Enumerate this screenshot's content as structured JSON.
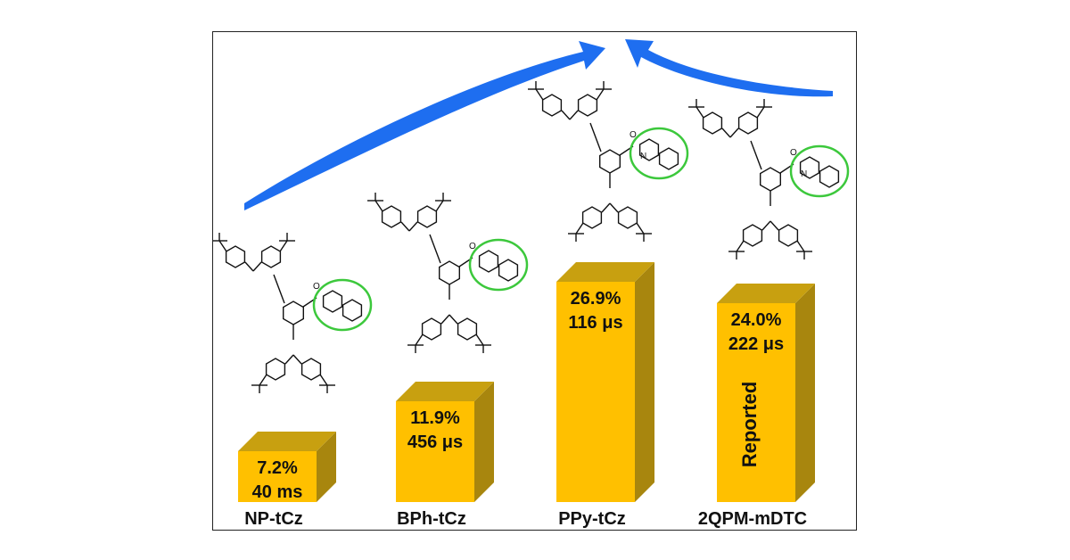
{
  "chart_data": {
    "type": "bar",
    "categories": [
      "NP-tCz",
      "BPh-tCz",
      "PPy-tCz",
      "2QPM-mDTC"
    ],
    "series": [
      {
        "values": [
          7.2,
          11.9,
          26.9,
          24.0
        ]
      }
    ],
    "value_labels": [
      "7.2%",
      "11.9%",
      "26.9%",
      "24.0%"
    ],
    "lifetime_labels": [
      "40 ms",
      "456 μs",
      "116 μs",
      "222 μs"
    ],
    "annotations": [
      {
        "category": "2QPM-mDTC",
        "text": "Reported"
      }
    ],
    "title": "",
    "xlabel": "",
    "ylabel": "",
    "ylim": [
      0,
      30
    ],
    "grid": false,
    "colors": {
      "bar_front": "#FFC000",
      "bar_side": "#A8860E",
      "bar_top": "#C8A010",
      "arrow": "#1E6EF0",
      "highlight_ring": "#3CC83C"
    }
  }
}
